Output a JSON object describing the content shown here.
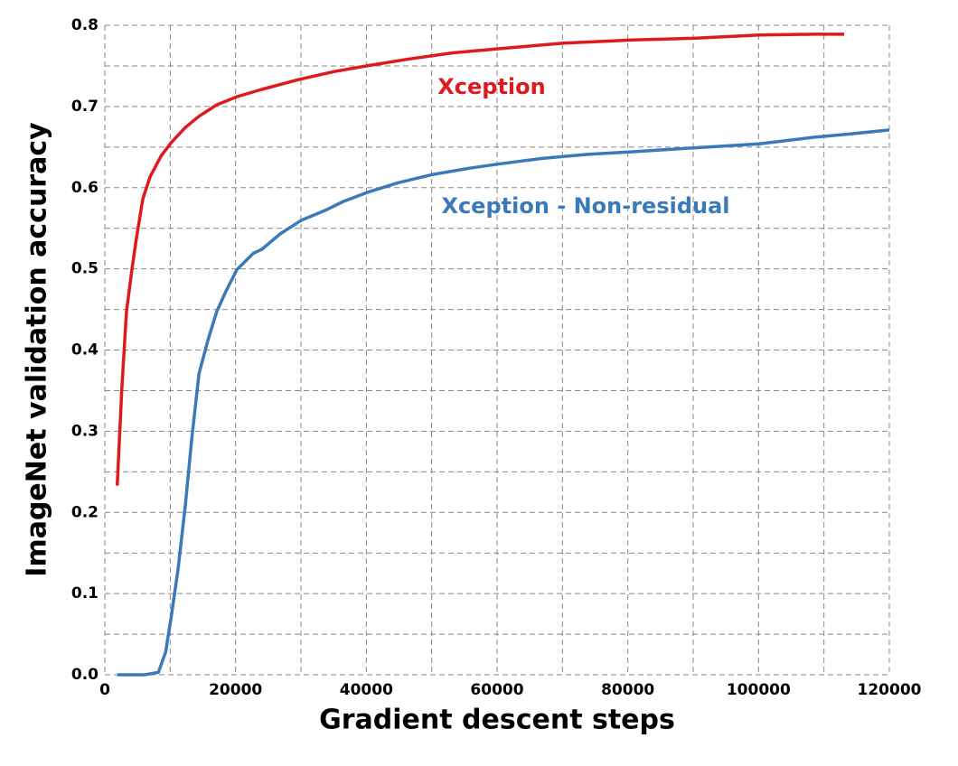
{
  "chart_data": {
    "type": "line",
    "x_label": "Gradient descent steps",
    "y_label": "ImageNet validation accuracy",
    "xlim": [
      0,
      120000
    ],
    "xticks": [
      0,
      20000,
      40000,
      60000,
      80000,
      100000,
      120000
    ],
    "ylim": [
      0,
      0.8
    ],
    "yticks": [
      {
        "value": 0,
        "label": "0.0"
      },
      0.1,
      0.2,
      0.3,
      0.4,
      0.5,
      0.6,
      0.7,
      0.8
    ],
    "grid": true,
    "series": [
      {
        "name": "Xception",
        "color": "#e0191e",
        "x": [
          1900,
          2600,
          3300,
          4100,
          4800,
          5800,
          6900,
          8600,
          10200,
          12300,
          14400,
          17100,
          20200,
          24000,
          29600,
          35100,
          40100,
          46200,
          53100,
          60000,
          70100,
          80700,
          90100,
          100100,
          108400,
          113100
        ],
        "values": [
          0.233,
          0.352,
          0.447,
          0.497,
          0.536,
          0.586,
          0.613,
          0.639,
          0.656,
          0.674,
          0.688,
          0.702,
          0.712,
          0.721,
          0.733,
          0.743,
          0.75,
          0.758,
          0.766,
          0.771,
          0.778,
          0.782,
          0.784,
          0.788,
          0.789,
          0.789
        ]
      },
      {
        "name": "Xception - Non-residual",
        "color": "#3a7ab8",
        "x": [
          1900,
          6100,
          8200,
          9300,
          10200,
          11200,
          12300,
          13300,
          14400,
          15800,
          17100,
          18500,
          20200,
          22700,
          24000,
          26800,
          30100,
          33700,
          36500,
          40100,
          44800,
          50000,
          55800,
          60100,
          66900,
          73800,
          80200,
          90100,
          100100,
          108400,
          113900,
          120000
        ],
        "values": [
          0,
          0,
          0.003,
          0.028,
          0.074,
          0.13,
          0.208,
          0.291,
          0.371,
          0.413,
          0.447,
          0.472,
          0.499,
          0.519,
          0.524,
          0.543,
          0.56,
          0.572,
          0.583,
          0.594,
          0.606,
          0.616,
          0.624,
          0.629,
          0.636,
          0.641,
          0.644,
          0.649,
          0.654,
          0.662,
          0.666,
          0.671
        ]
      }
    ]
  }
}
